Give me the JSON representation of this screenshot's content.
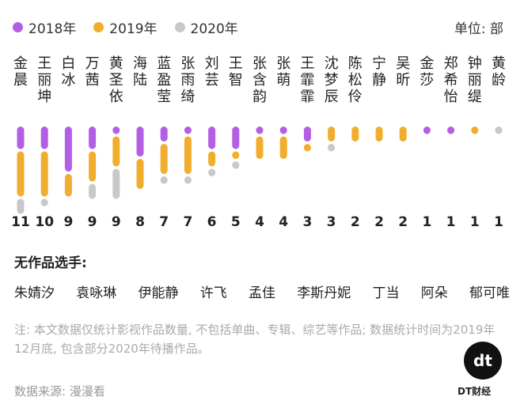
{
  "legend": [
    {
      "label": "2018年",
      "color": "#b45ee6"
    },
    {
      "label": "2019年",
      "color": "#f1ae2e"
    },
    {
      "label": "2020年",
      "color": "#c8c8c8"
    }
  ],
  "unit_label": "单位: 部",
  "chart_data": {
    "type": "bar",
    "categories": [
      "金晨",
      "王丽坤",
      "白冰",
      "万茜",
      "黄圣依",
      "海陆",
      "蓝盈莹",
      "张雨绮",
      "刘芸",
      "王智",
      "张含韵",
      "张萌",
      "王霏霏",
      "沈梦辰",
      "陈松伶",
      "宁静",
      "吴昕",
      "金莎",
      "郑希怡",
      "钟丽缇",
      "黄龄"
    ],
    "series": [
      {
        "name": "2018年",
        "color": "#b45ee6",
        "values": [
          3,
          3,
          6,
          3,
          1,
          4,
          2,
          1,
          3,
          3,
          1,
          1,
          2,
          0,
          0,
          0,
          0,
          1,
          1,
          0,
          0
        ]
      },
      {
        "name": "2019年",
        "color": "#f1ae2e",
        "values": [
          6,
          6,
          3,
          4,
          4,
          4,
          4,
          5,
          2,
          1,
          3,
          3,
          1,
          2,
          2,
          2,
          2,
          0,
          0,
          1,
          0
        ]
      },
      {
        "name": "2020年",
        "color": "#c8c8c8",
        "values": [
          2,
          1,
          0,
          2,
          4,
          0,
          1,
          1,
          1,
          1,
          0,
          0,
          0,
          1,
          0,
          0,
          0,
          0,
          0,
          0,
          1
        ]
      }
    ],
    "totals": [
      11,
      10,
      9,
      9,
      9,
      8,
      7,
      7,
      6,
      5,
      4,
      4,
      3,
      3,
      2,
      2,
      2,
      1,
      1,
      1,
      1
    ]
  },
  "no_works": {
    "title": "无作品选手:",
    "names": [
      "朱婧汐",
      "袁咏琳",
      "伊能静",
      "许飞",
      "孟佳",
      "李斯丹妮",
      "丁当",
      "阿朵",
      "郁可唯"
    ]
  },
  "note": "注: 本文数据仅统计影视作品数量, 不包括单曲、专辑、综艺等作品; 数据统计时间为2019年12月底, 包含部分2020年待播作品。",
  "source": "数据来源: 漫漫看",
  "logo": {
    "mark": "dt",
    "text": "DT财经"
  }
}
